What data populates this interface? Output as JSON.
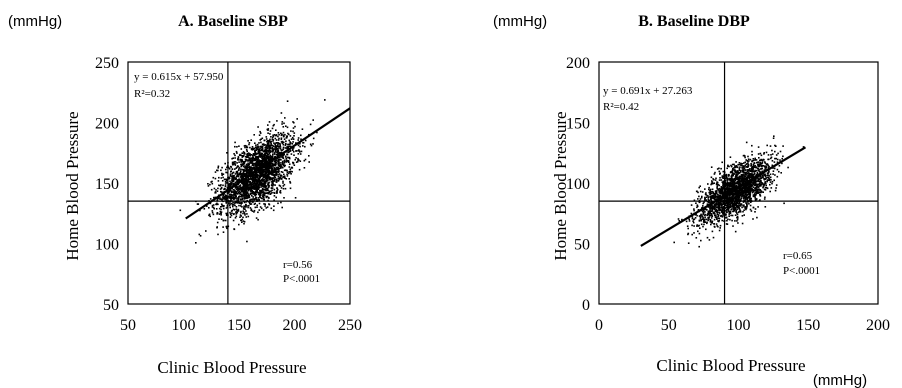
{
  "chart_data": [
    {
      "type": "scatter",
      "unit_y": "(mmHg)",
      "unit_x": "",
      "title": "A. Baseline SBP",
      "xlabel": "Clinic Blood Pressure",
      "ylabel": "Home Blood Pressure",
      "xlim": [
        50,
        250
      ],
      "ylim": [
        50,
        250
      ],
      "xticks": [
        "50",
        "100",
        "150",
        "200",
        "250"
      ],
      "yticks": [
        "50",
        "100",
        "150",
        "200",
        "250"
      ],
      "grid": false,
      "equation": "y = 0.615x + 57.950",
      "r2": "R²=0.32",
      "r": "r=0.56",
      "p": "P<.0001",
      "reference_lines": {
        "x": 140,
        "y": 135
      },
      "regression": {
        "slope": 0.615,
        "intercept": 57.95,
        "x_range": [
          102,
          250
        ]
      },
      "cluster": {
        "center": [
          165,
          158
        ],
        "spread": [
          17,
          16
        ],
        "corr": 0.56,
        "x_range": [
          95,
          250
        ],
        "y_range": [
          90,
          245
        ]
      }
    },
    {
      "type": "scatter",
      "unit_y": "(mmHg)",
      "unit_x": "(mmHg)",
      "title": "B. Baseline DBP",
      "xlabel": "Clinic Blood Pressure",
      "ylabel": "Home Blood Pressure",
      "xlim": [
        0,
        200
      ],
      "ylim": [
        0,
        200
      ],
      "xticks": [
        "0",
        "50",
        "100",
        "150",
        "200"
      ],
      "yticks": [
        "0",
        "50",
        "100",
        "150",
        "200"
      ],
      "grid": false,
      "equation": "y = 0.691x + 27.263",
      "r2": "R²=0.42",
      "r": "r=0.65",
      "p": "P<.0001",
      "reference_lines": {
        "x": 90,
        "y": 85
      },
      "regression": {
        "slope": 0.691,
        "intercept": 27.263,
        "x_range": [
          30,
          148
        ]
      },
      "cluster": {
        "center": [
          97,
          94
        ],
        "spread": [
          13,
          13
        ],
        "corr": 0.65,
        "x_range": [
          30,
          150
        ],
        "y_range": [
          30,
          145
        ]
      }
    }
  ],
  "bottom_unit": "(mmHg)"
}
